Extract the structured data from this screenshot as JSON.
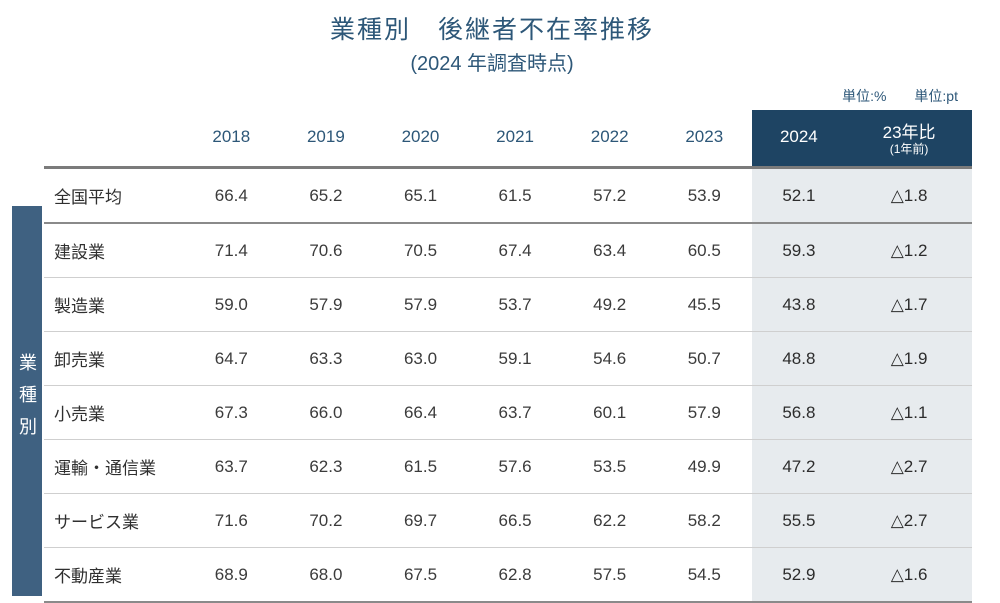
{
  "title": {
    "main": "業種別　後継者不在率推移",
    "sub": "(2024 年調査時点)"
  },
  "units": {
    "left": "単位:%",
    "right": "単位:pt"
  },
  "side_label": "業種別",
  "table": {
    "columns": [
      "2018",
      "2019",
      "2020",
      "2021",
      "2022",
      "2023"
    ],
    "highlight_columns": [
      {
        "label": "2024",
        "sub": ""
      },
      {
        "label": "23年比",
        "sub": "(1年前)"
      }
    ],
    "rows": [
      {
        "label": "全国平均",
        "avg": true,
        "values": [
          "66.4",
          "65.2",
          "65.1",
          "61.5",
          "57.2",
          "53.9"
        ],
        "hl": [
          "52.1",
          "△1.8"
        ]
      },
      {
        "label": "建設業",
        "avg": false,
        "values": [
          "71.4",
          "70.6",
          "70.5",
          "67.4",
          "63.4",
          "60.5"
        ],
        "hl": [
          "59.3",
          "△1.2"
        ]
      },
      {
        "label": "製造業",
        "avg": false,
        "values": [
          "59.0",
          "57.9",
          "57.9",
          "53.7",
          "49.2",
          "45.5"
        ],
        "hl": [
          "43.8",
          "△1.7"
        ]
      },
      {
        "label": "卸売業",
        "avg": false,
        "values": [
          "64.7",
          "63.3",
          "63.0",
          "59.1",
          "54.6",
          "50.7"
        ],
        "hl": [
          "48.8",
          "△1.9"
        ]
      },
      {
        "label": "小売業",
        "avg": false,
        "values": [
          "67.3",
          "66.0",
          "66.4",
          "63.7",
          "60.1",
          "57.9"
        ],
        "hl": [
          "56.8",
          "△1.1"
        ]
      },
      {
        "label": "運輸・通信業",
        "avg": false,
        "values": [
          "63.7",
          "62.3",
          "61.5",
          "57.6",
          "53.5",
          "49.9"
        ],
        "hl": [
          "47.2",
          "△2.7"
        ]
      },
      {
        "label": "サービス業",
        "avg": false,
        "values": [
          "71.6",
          "70.2",
          "69.7",
          "66.5",
          "62.2",
          "58.2"
        ],
        "hl": [
          "55.5",
          "△2.7"
        ]
      },
      {
        "label": "不動産業",
        "avg": false,
        "values": [
          "68.9",
          "68.0",
          "67.5",
          "62.8",
          "57.5",
          "54.5"
        ],
        "hl": [
          "52.9",
          "△1.6"
        ]
      }
    ]
  },
  "colors": {
    "title": "#2d5778",
    "side_bg": "#3f6181",
    "hl_header_bg": "#1e4463",
    "hl_cell_bg": "#e7ebee",
    "border": "#cfcfcf",
    "border_strong": "#8a8a8a"
  }
}
